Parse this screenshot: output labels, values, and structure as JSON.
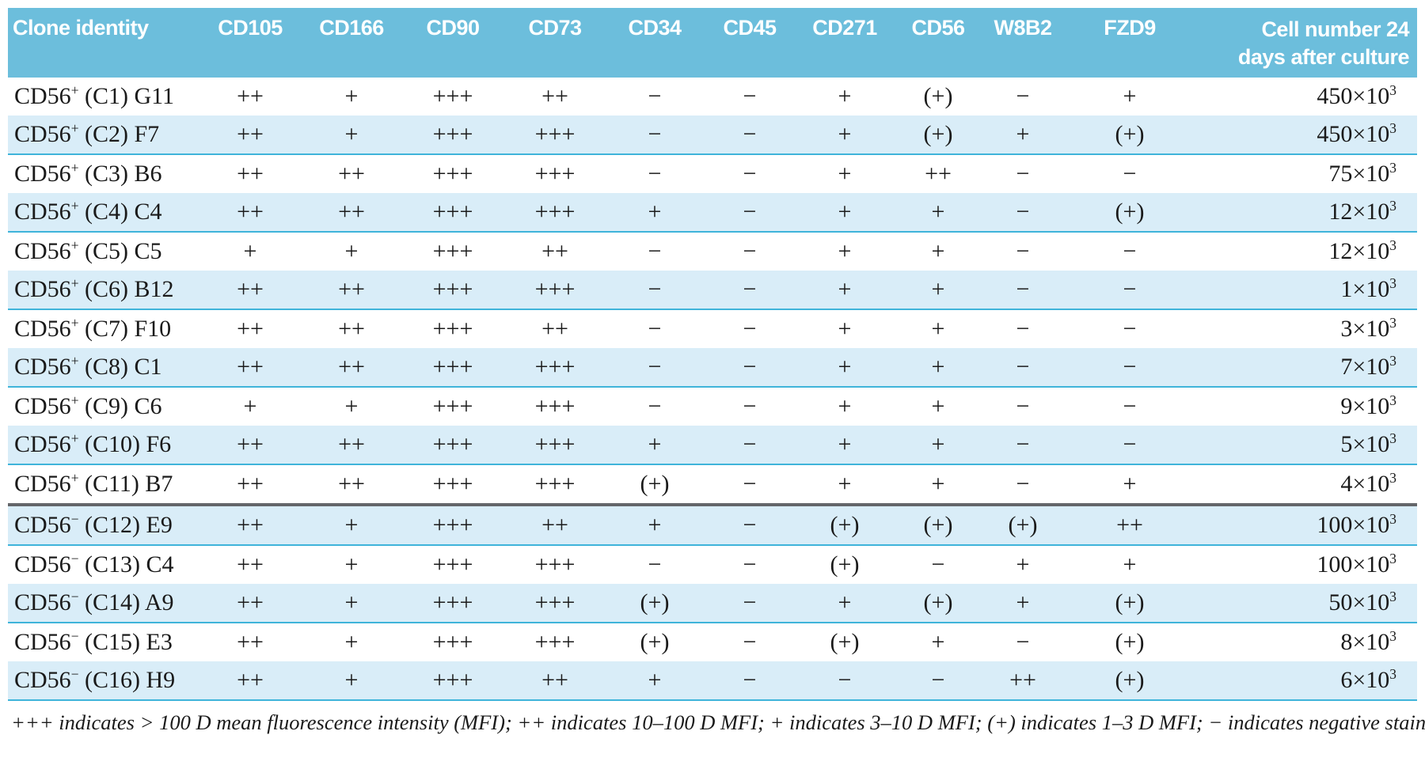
{
  "table": {
    "marker_headers": [
      "Clone identity",
      "CD105",
      "CD166",
      "CD90",
      "CD73",
      "CD34",
      "CD45",
      "CD271",
      "CD56",
      "W8B2",
      "FZD9"
    ],
    "last_header": {
      "line1": "Cell number 24",
      "line2": "days after culture"
    },
    "rows": [
      {
        "clone": {
          "prefix": "CD56",
          "sign": "+",
          "rest": " (C1) G11"
        },
        "markers": [
          "++",
          "+",
          "+++",
          "++",
          "−",
          "−",
          "+",
          "(+)",
          "−",
          "+"
        ],
        "cell_number": "450×10",
        "cell_exp": "3",
        "striped": false,
        "divider_before": false
      },
      {
        "clone": {
          "prefix": "CD56",
          "sign": "+",
          "rest": " (C2) F7"
        },
        "markers": [
          "++",
          "+",
          "+++",
          "+++",
          "−",
          "−",
          "+",
          "(+)",
          "+",
          "(+)"
        ],
        "cell_number": "450×10",
        "cell_exp": "3",
        "striped": true,
        "divider_before": false
      },
      {
        "clone": {
          "prefix": "CD56",
          "sign": "+",
          "rest": " (C3) B6"
        },
        "markers": [
          "++",
          "++",
          "+++",
          "+++",
          "−",
          "−",
          "+",
          "++",
          "−",
          "−"
        ],
        "cell_number": "75×10",
        "cell_exp": "3",
        "striped": false,
        "divider_before": false
      },
      {
        "clone": {
          "prefix": "CD56",
          "sign": "+",
          "rest": " (C4) C4"
        },
        "markers": [
          "++",
          "++",
          "+++",
          "+++",
          "+",
          "−",
          "+",
          "+",
          "−",
          "(+)"
        ],
        "cell_number": "12×10",
        "cell_exp": "3",
        "striped": true,
        "divider_before": false
      },
      {
        "clone": {
          "prefix": "CD56",
          "sign": "+",
          "rest": " (C5) C5"
        },
        "markers": [
          "+",
          "+",
          "+++",
          "++",
          "−",
          "−",
          "+",
          "+",
          "−",
          "−"
        ],
        "cell_number": "12×10",
        "cell_exp": "3",
        "striped": false,
        "divider_before": false
      },
      {
        "clone": {
          "prefix": "CD56",
          "sign": "+",
          "rest": " (C6) B12"
        },
        "markers": [
          "++",
          "++",
          "+++",
          "+++",
          "−",
          "−",
          "+",
          "+",
          "−",
          "−"
        ],
        "cell_number": "1×10",
        "cell_exp": "3",
        "striped": true,
        "divider_before": false
      },
      {
        "clone": {
          "prefix": "CD56",
          "sign": "+",
          "rest": " (C7) F10"
        },
        "markers": [
          "++",
          "++",
          "+++",
          "++",
          "−",
          "−",
          "+",
          "+",
          "−",
          "−"
        ],
        "cell_number": "3×10",
        "cell_exp": "3",
        "striped": false,
        "divider_before": false
      },
      {
        "clone": {
          "prefix": "CD56",
          "sign": "+",
          "rest": " (C8) C1"
        },
        "markers": [
          "++",
          "++",
          "+++",
          "+++",
          "−",
          "−",
          "+",
          "+",
          "−",
          "−"
        ],
        "cell_number": "7×10",
        "cell_exp": "3",
        "striped": true,
        "divider_before": false
      },
      {
        "clone": {
          "prefix": "CD56",
          "sign": "+",
          "rest": " (C9) C6"
        },
        "markers": [
          "+",
          "+",
          "+++",
          "+++",
          "−",
          "−",
          "+",
          "+",
          "−",
          "−"
        ],
        "cell_number": "9×10",
        "cell_exp": "3",
        "striped": false,
        "divider_before": false
      },
      {
        "clone": {
          "prefix": "CD56",
          "sign": "+",
          "rest": " (C10) F6"
        },
        "markers": [
          "++",
          "++",
          "+++",
          "+++",
          "+",
          "−",
          "+",
          "+",
          "−",
          "−"
        ],
        "cell_number": "5×10",
        "cell_exp": "3",
        "striped": true,
        "divider_before": false
      },
      {
        "clone": {
          "prefix": "CD56",
          "sign": "+",
          "rest": " (C11) B7"
        },
        "markers": [
          "++",
          "++",
          "+++",
          "+++",
          "(+)",
          "−",
          "+",
          "+",
          "−",
          "+"
        ],
        "cell_number": "4×10",
        "cell_exp": "3",
        "striped": false,
        "divider_before": false
      },
      {
        "clone": {
          "prefix": "CD56",
          "sign": "−",
          "rest": " (C12) E9"
        },
        "markers": [
          "++",
          "+",
          "+++",
          "++",
          "+",
          "−",
          "(+)",
          "(+)",
          "(+)",
          "++"
        ],
        "cell_number": "100×10",
        "cell_exp": "3",
        "striped": true,
        "divider_before": true
      },
      {
        "clone": {
          "prefix": "CD56",
          "sign": "−",
          "rest": " (C13) C4"
        },
        "markers": [
          "++",
          "+",
          "+++",
          "+++",
          "−",
          "−",
          "(+)",
          "−",
          "+",
          "+"
        ],
        "cell_number": "100×10",
        "cell_exp": "3",
        "striped": false,
        "divider_before": false
      },
      {
        "clone": {
          "prefix": "CD56",
          "sign": "−",
          "rest": " (C14) A9"
        },
        "markers": [
          "++",
          "+",
          "+++",
          "+++",
          "(+)",
          "−",
          "+",
          "(+)",
          "+",
          "(+)"
        ],
        "cell_number": "50×10",
        "cell_exp": "3",
        "striped": true,
        "divider_before": false
      },
      {
        "clone": {
          "prefix": "CD56",
          "sign": "−",
          "rest": " (C15) E3"
        },
        "markers": [
          "++",
          "+",
          "+++",
          "+++",
          "(+)",
          "−",
          "(+)",
          "+",
          "−",
          "(+)"
        ],
        "cell_number": "8×10",
        "cell_exp": "3",
        "striped": false,
        "divider_before": false
      },
      {
        "clone": {
          "prefix": "CD56",
          "sign": "−",
          "rest": " (C16) H9"
        },
        "markers": [
          "++",
          "+",
          "+++",
          "++",
          "+",
          "−",
          "−",
          "−",
          "++",
          "(+)"
        ],
        "cell_number": "6×10",
        "cell_exp": "3",
        "striped": true,
        "divider_before": false
      }
    ]
  },
  "footnote": "+++ indicates > 100 D mean fluorescence intensity (MFI); ++ indicates 10–100 D MFI; + indicates 3–10 D MFI; (+) indicates 1–3 D MFI; − indicates negative staining.",
  "colors": {
    "header_bg": "#6cbedc",
    "stripe_bg": "#d9edf8",
    "stripe_rule": "#3fb4da",
    "group_divider": "#64666a"
  }
}
